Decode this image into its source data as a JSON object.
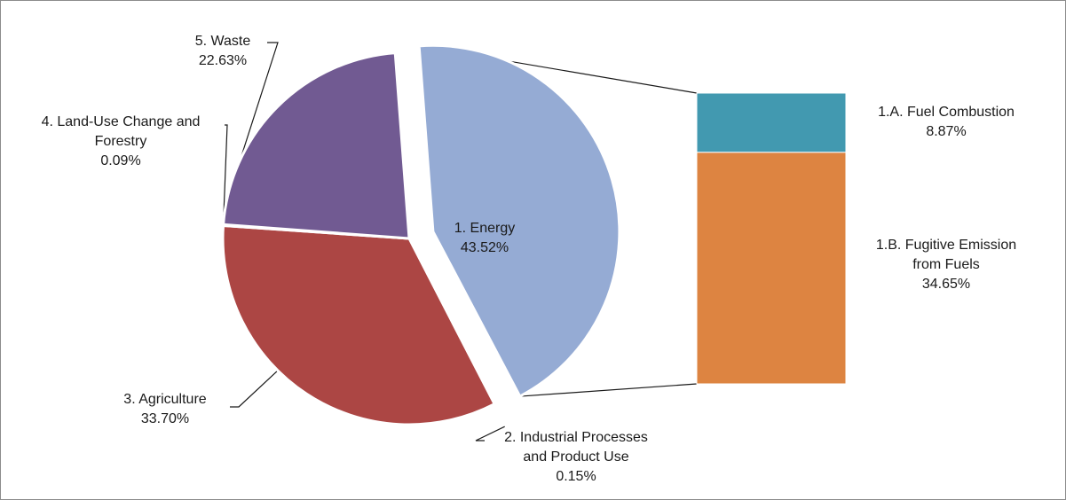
{
  "chart_data": {
    "type": "bar-of-pie",
    "pie": {
      "slices": [
        {
          "name_lines": [
            "1. Energy"
          ],
          "value": 43.52,
          "value_label": "43.52%",
          "color": "#95abd4",
          "exploded": true
        },
        {
          "name_lines": [
            "2. Industrial Processes",
            "and Product Use"
          ],
          "value": 0.15,
          "value_label": "0.15%",
          "color": "#4472c4",
          "exploded": true
        },
        {
          "name_lines": [
            "3. Agriculture"
          ],
          "value": 33.7,
          "value_label": "33.70%",
          "color": "#ac4644",
          "exploded": false
        },
        {
          "name_lines": [
            "4. Land-Use Change and",
            "Forestry"
          ],
          "value": 0.09,
          "value_label": "0.09%",
          "color": "#8ea64b",
          "exploded": false
        },
        {
          "name_lines": [
            "5. Waste"
          ],
          "value": 22.63,
          "value_label": "22.63%",
          "color": "#715a92",
          "exploded": false
        }
      ]
    },
    "bar": {
      "parent": "1. Energy",
      "segments": [
        {
          "name_lines": [
            "1.A. Fuel Combustion"
          ],
          "value": 8.87,
          "value_label": "8.87%",
          "color": "#4299b0"
        },
        {
          "name_lines": [
            "1.B.  Fugitive Emission",
            "from Fuels"
          ],
          "value": 34.65,
          "value_label": "34.65%",
          "color": "#dd8441"
        }
      ]
    }
  }
}
